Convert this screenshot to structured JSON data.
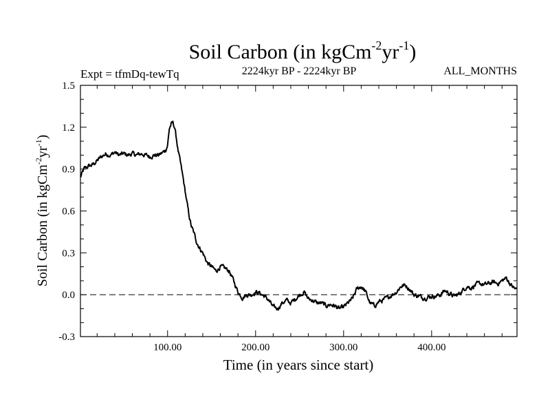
{
  "chart_data": {
    "type": "line",
    "title": "Soil Carbon (in kgCm",
    "title_sup1": "-2",
    "title_mid": "yr",
    "title_sup2": "-1",
    "title_end": ")",
    "expt_label": "Expt = tfmDq-tewTq",
    "period_label": "2224kyr BP - 2224kyr BP",
    "months_label": "ALL_MONTHS",
    "xlabel": "Time (in years since start)",
    "ylabel": "Soil Carbon (in kgCm",
    "ylabel_sup1": "-2",
    "ylabel_mid": "yr",
    "ylabel_sup2": "-1",
    "ylabel_end": ")",
    "xlim": [
      1,
      497
    ],
    "ylim": [
      -0.3,
      1.5
    ],
    "x_ticks": [
      100,
      200,
      300,
      400
    ],
    "x_tick_labels": [
      "100.00",
      "200.00",
      "300.00",
      "400.00"
    ],
    "y_ticks": [
      -0.3,
      0.0,
      0.3,
      0.6,
      0.9,
      1.2,
      1.5
    ],
    "y_tick_labels": [
      "-0.3",
      "0.0",
      "0.3",
      "0.6",
      "0.9",
      "1.2",
      "1.5"
    ],
    "reference_line": {
      "y": 0.0,
      "style": "dashed"
    },
    "grid": false,
    "series": [
      {
        "color": "#000000",
        "x": [
          1,
          5,
          10,
          15,
          20,
          25,
          30,
          35,
          40,
          45,
          50,
          55,
          60,
          65,
          70,
          75,
          80,
          85,
          90,
          95,
          98,
          100,
          102,
          104,
          106,
          108,
          110,
          112,
          115,
          118,
          121,
          124,
          127,
          130,
          133,
          136,
          140,
          145,
          150,
          155,
          160,
          165,
          170,
          175,
          180,
          185,
          190,
          195,
          200,
          205,
          210,
          215,
          220,
          225,
          230,
          235,
          240,
          245,
          250,
          255,
          260,
          265,
          270,
          275,
          280,
          285,
          290,
          295,
          300,
          305,
          310,
          315,
          320,
          325,
          330,
          335,
          340,
          345,
          350,
          355,
          360,
          365,
          370,
          375,
          380,
          385,
          390,
          395,
          400,
          405,
          410,
          415,
          420,
          425,
          430,
          435,
          440,
          445,
          450,
          455,
          460,
          465,
          470,
          475,
          480,
          485,
          490,
          495,
          497
        ],
        "y": [
          0.84,
          0.9,
          0.92,
          0.93,
          0.96,
          0.99,
          1.01,
          1.0,
          1.02,
          1.0,
          1.01,
          1.0,
          1.01,
          1.0,
          1.01,
          1.0,
          0.99,
          1.0,
          1.0,
          1.02,
          1.04,
          1.07,
          1.19,
          1.22,
          1.23,
          1.2,
          1.12,
          1.03,
          0.93,
          0.82,
          0.7,
          0.58,
          0.49,
          0.44,
          0.38,
          0.34,
          0.3,
          0.23,
          0.2,
          0.17,
          0.2,
          0.19,
          0.17,
          0.1,
          0.02,
          -0.02,
          0.0,
          0.0,
          0.02,
          0.01,
          -0.01,
          -0.04,
          -0.09,
          -0.1,
          -0.06,
          -0.04,
          -0.06,
          -0.03,
          0.0,
          0.02,
          -0.03,
          -0.04,
          -0.06,
          -0.06,
          -0.08,
          -0.07,
          -0.08,
          -0.1,
          -0.09,
          -0.06,
          -0.03,
          0.04,
          0.06,
          0.02,
          -0.06,
          -0.08,
          -0.05,
          -0.04,
          -0.02,
          0.0,
          0.02,
          0.06,
          0.07,
          0.04,
          0.0,
          -0.01,
          -0.02,
          -0.02,
          -0.01,
          -0.01,
          0.0,
          0.03,
          0.01,
          -0.01,
          0.0,
          0.03,
          0.06,
          0.05,
          0.07,
          0.08,
          0.07,
          0.08,
          0.09,
          0.08,
          0.1,
          0.12,
          0.07,
          0.04,
          0.04
        ]
      }
    ]
  }
}
